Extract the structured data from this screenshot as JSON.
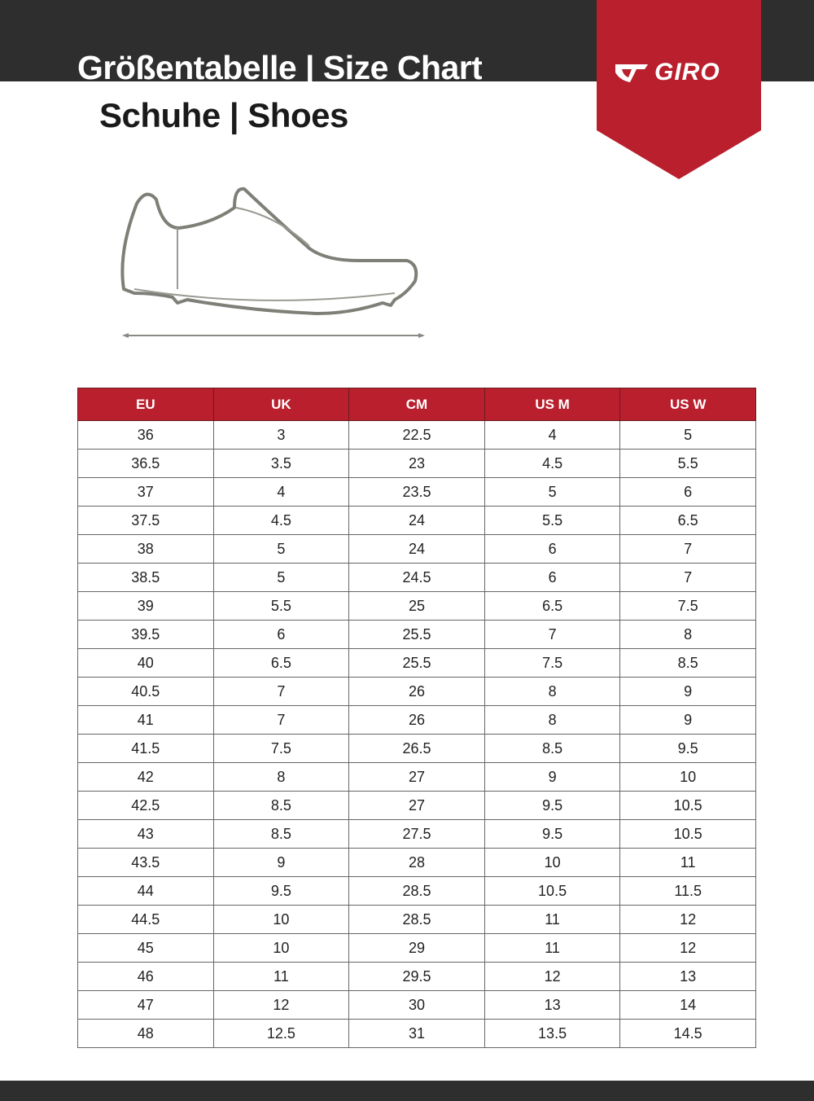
{
  "header": {
    "title": "Größentabelle | Size Chart",
    "subtitle": "Schuhe | Shoes",
    "brand": "GIRO",
    "accent": "#b91f2d",
    "dark": "#2e2e2e"
  },
  "table": {
    "columns": [
      "EU",
      "UK",
      "CM",
      "US M",
      "US W"
    ],
    "rows": [
      [
        "36",
        "3",
        "22.5",
        "4",
        "5"
      ],
      [
        "36.5",
        "3.5",
        "23",
        "4.5",
        "5.5"
      ],
      [
        "37",
        "4",
        "23.5",
        "5",
        "6"
      ],
      [
        "37.5",
        "4.5",
        "24",
        "5.5",
        "6.5"
      ],
      [
        "38",
        "5",
        "24",
        "6",
        "7"
      ],
      [
        "38.5",
        "5",
        "24.5",
        "6",
        "7"
      ],
      [
        "39",
        "5.5",
        "25",
        "6.5",
        "7.5"
      ],
      [
        "39.5",
        "6",
        "25.5",
        "7",
        "8"
      ],
      [
        "40",
        "6.5",
        "25.5",
        "7.5",
        "8.5"
      ],
      [
        "40.5",
        "7",
        "26",
        "8",
        "9"
      ],
      [
        "41",
        "7",
        "26",
        "8",
        "9"
      ],
      [
        "41.5",
        "7.5",
        "26.5",
        "8.5",
        "9.5"
      ],
      [
        "42",
        "8",
        "27",
        "9",
        "10"
      ],
      [
        "42.5",
        "8.5",
        "27",
        "9.5",
        "10.5"
      ],
      [
        "43",
        "8.5",
        "27.5",
        "9.5",
        "10.5"
      ],
      [
        "43.5",
        "9",
        "28",
        "10",
        "11"
      ],
      [
        "44",
        "9.5",
        "28.5",
        "10.5",
        "11.5"
      ],
      [
        "44.5",
        "10",
        "28.5",
        "11",
        "12"
      ],
      [
        "45",
        "10",
        "29",
        "11",
        "12"
      ],
      [
        "46",
        "11",
        "29.5",
        "12",
        "13"
      ],
      [
        "47",
        "12",
        "30",
        "13",
        "14"
      ],
      [
        "48",
        "12.5",
        "31",
        "13.5",
        "14.5"
      ]
    ]
  }
}
